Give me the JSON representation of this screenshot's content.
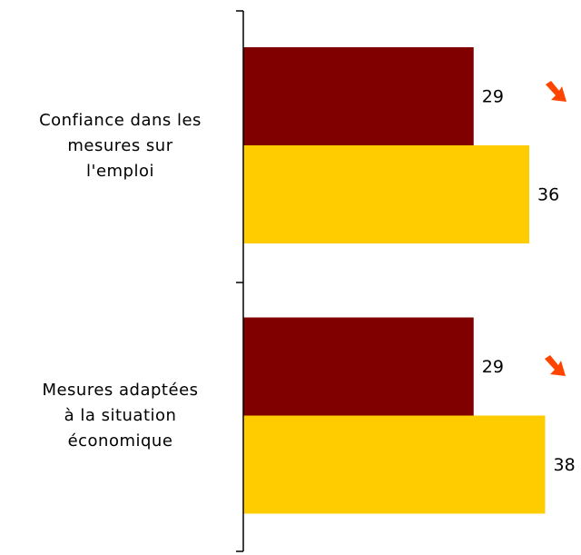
{
  "chart_data": {
    "type": "hbar",
    "categories": [
      "Confiance dans les\nmesures sur\nl'emploi",
      "Mesures adaptées\nà la situation\néconomique"
    ],
    "series": [
      {
        "color": "#800000",
        "values": [
          29,
          29
        ]
      },
      {
        "color": "#ffcc00",
        "values": [
          36,
          38
        ]
      }
    ],
    "xlim": [
      0,
      40
    ]
  }
}
